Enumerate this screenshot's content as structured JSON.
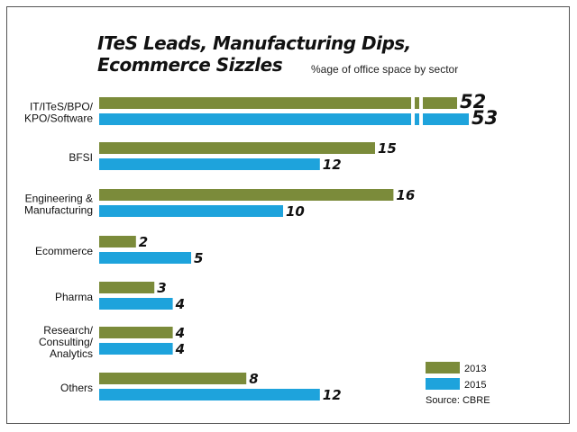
{
  "header": {
    "title": "ITeS Leads, Manufacturing Dips,\nEcommerce Sizzles",
    "subtitle": "%age of office space by sector"
  },
  "source": "Source: CBRE",
  "colors": {
    "2013": "#7b8b3a",
    "2015": "#1ea3dc"
  },
  "chart_data": {
    "type": "bar",
    "orientation": "horizontal",
    "title": "ITeS Leads, Manufacturing Dips, Ecommerce Sizzles",
    "subtitle": "%age of office space by sector",
    "categories": [
      [
        "IT/ITeS/BPO/",
        "KPO/Software"
      ],
      [
        "BFSI"
      ],
      [
        "Engineering &",
        "Manufacturing"
      ],
      [
        "Ecommerce"
      ],
      [
        "Pharma"
      ],
      [
        "Research/",
        "Consulting/",
        "Analytics"
      ],
      [
        "Others"
      ]
    ],
    "series": [
      {
        "name": "2013",
        "values": [
          52,
          15,
          16,
          2,
          3,
          4,
          8
        ]
      },
      {
        "name": "2015",
        "values": [
          53,
          12,
          10,
          5,
          4,
          4,
          12
        ]
      }
    ],
    "axis_break": true,
    "legend": "bottom-right",
    "grid": false
  }
}
